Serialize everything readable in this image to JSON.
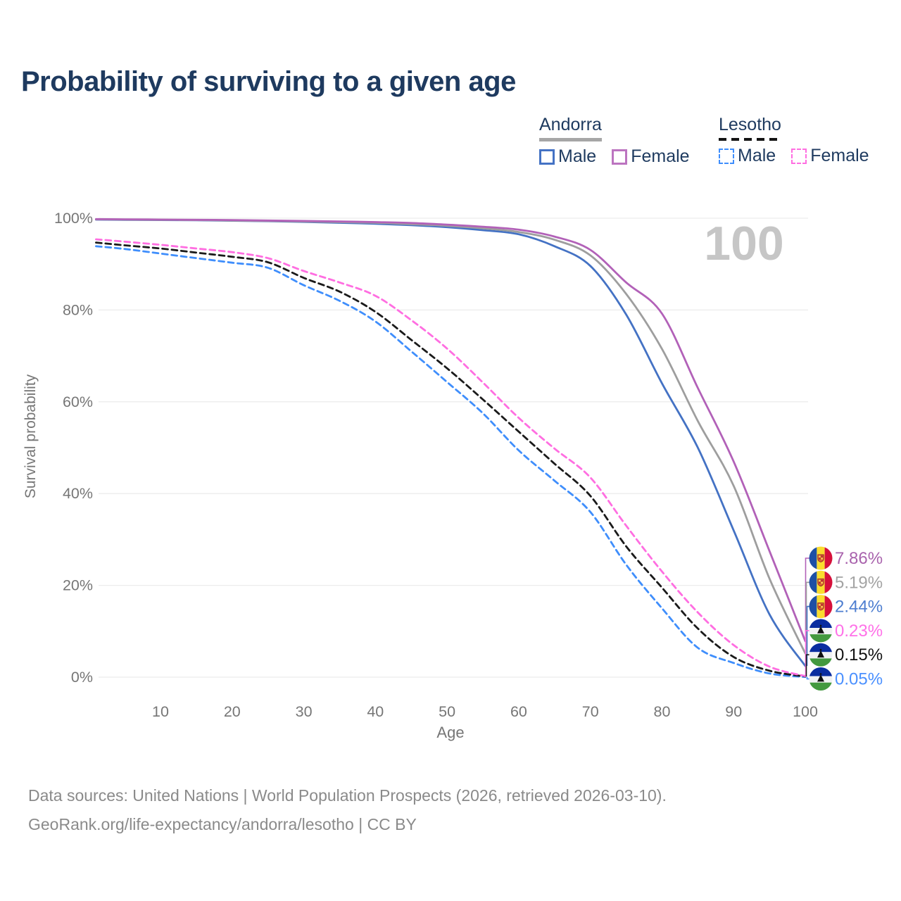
{
  "title": "Probability of surviving to a given age",
  "legend": {
    "groups": [
      {
        "name": "Andorra",
        "line_style": "solid",
        "underline_color": "#a6a6a6",
        "items": [
          {
            "label": "Male",
            "swatch_color": "#4472c4",
            "dashed": false
          },
          {
            "label": "Female",
            "swatch_color": "#bc74c0",
            "dashed": false
          }
        ]
      },
      {
        "name": "Lesotho",
        "line_style": "dashed",
        "underline_color": "#141414",
        "items": [
          {
            "label": "Male",
            "swatch_color": "#3f8efc",
            "dashed": true
          },
          {
            "label": "Female",
            "swatch_color": "#ff6ee1",
            "dashed": true
          }
        ]
      }
    ]
  },
  "axes": {
    "x_label": "Age",
    "y_label": "Survival probability",
    "x_ticks": [
      10,
      20,
      30,
      40,
      50,
      60,
      70,
      80,
      90,
      100
    ],
    "y_ticks": [
      0,
      20,
      40,
      60,
      80,
      100
    ],
    "y_tick_suffix": "%"
  },
  "annotation": "100",
  "colors": {
    "title": "#1e3a5f",
    "grid": "#ececec",
    "axis_text": "#767676",
    "annotation": "#c6c6c6",
    "footer_text": "#8a8a8a"
  },
  "chart_data": {
    "type": "line",
    "title": "Probability of surviving to a given age",
    "xlabel": "Age",
    "ylabel": "Survival probability",
    "xlim": [
      1,
      100
    ],
    "ylim": [
      0,
      100
    ],
    "grid": "horizontal",
    "legend_position": "top-right",
    "annotation": "100",
    "x": [
      1,
      5,
      10,
      15,
      20,
      25,
      30,
      35,
      40,
      45,
      50,
      55,
      60,
      65,
      70,
      75,
      80,
      85,
      90,
      95,
      100
    ],
    "series": [
      {
        "id": "andorra-male",
        "name": "Andorra Male",
        "country": "Andorra",
        "sex": "Male",
        "color": "#4472c4",
        "label_color": "#4e7ed0",
        "dashed": false,
        "flag": "andorra",
        "end_label": "2.44%",
        "end_value": 2.44,
        "values": [
          99.7,
          99.65,
          99.6,
          99.55,
          99.45,
          99.35,
          99.2,
          99.0,
          98.8,
          98.5,
          98.05,
          97.4,
          96.5,
          93.9,
          89.6,
          79.0,
          64.0,
          50.0,
          32.0,
          13.7,
          2.44
        ]
      },
      {
        "id": "andorra-total",
        "name": "Andorra",
        "country": "Andorra",
        "sex": "Both",
        "color": "#9e9e9e",
        "label_color": "#a3a3a3",
        "dashed": false,
        "flag": "andorra",
        "end_label": "5.19%",
        "end_value": 5.19,
        "values": [
          99.75,
          99.7,
          99.65,
          99.6,
          99.5,
          99.4,
          99.3,
          99.15,
          99.0,
          98.7,
          98.35,
          97.8,
          97.0,
          95.3,
          91.9,
          83.5,
          71.5,
          55.8,
          41.7,
          21.5,
          5.19
        ]
      },
      {
        "id": "andorra-female",
        "name": "Andorra Female",
        "country": "Andorra",
        "sex": "Female",
        "color": "#b261b8",
        "label_color": "#a963ad",
        "dashed": false,
        "flag": "andorra",
        "end_label": "7.86%",
        "end_value": 7.86,
        "values": [
          99.8,
          99.75,
          99.7,
          99.65,
          99.6,
          99.5,
          99.4,
          99.3,
          99.15,
          98.95,
          98.6,
          98.15,
          97.5,
          96.0,
          93.1,
          86.0,
          79.2,
          63.0,
          47.0,
          27.5,
          7.86
        ]
      },
      {
        "id": "lesotho-male",
        "name": "Lesotho Male",
        "country": "Lesotho",
        "sex": "Male",
        "color": "#3f8efc",
        "label_color": "#4a90ff",
        "dashed": true,
        "flag": "lesotho",
        "end_label": "0.05%",
        "end_value": 0.05,
        "values": [
          93.9,
          93.3,
          92.3,
          91.3,
          90.3,
          89.2,
          85.4,
          82.0,
          77.5,
          71.0,
          64.3,
          57.5,
          49.4,
          42.8,
          36.0,
          24.5,
          15.0,
          6.4,
          3.1,
          0.8,
          0.05
        ]
      },
      {
        "id": "lesotho-total",
        "name": "Lesotho",
        "country": "Lesotho",
        "sex": "Both",
        "color": "#1a1a1a",
        "label_color": "#111111",
        "dashed": true,
        "flag": "lesotho",
        "end_label": "0.15%",
        "end_value": 0.15,
        "values": [
          94.7,
          94.1,
          93.4,
          92.5,
          91.6,
          90.4,
          87.0,
          84.0,
          79.6,
          73.5,
          67.3,
          60.5,
          53.5,
          46.5,
          39.5,
          28.5,
          19.5,
          10.6,
          4.4,
          1.4,
          0.15
        ]
      },
      {
        "id": "lesotho-female",
        "name": "Lesotho Female",
        "country": "Lesotho",
        "sex": "Female",
        "color": "#ff6ee1",
        "label_color": "#ff70e8",
        "dashed": true,
        "flag": "lesotho",
        "end_label": "0.23%",
        "end_value": 0.23,
        "values": [
          95.4,
          94.9,
          94.2,
          93.4,
          92.6,
          91.3,
          88.5,
          86.0,
          83.1,
          77.8,
          71.6,
          64.2,
          56.5,
          49.8,
          43.5,
          33.0,
          23.0,
          14.1,
          7.0,
          2.3,
          0.23
        ]
      }
    ]
  },
  "footer": {
    "line1": "Data sources: United Nations | World Population Prospects (2026, retrieved 2026-03-10).",
    "line2": "GeoRank.org/life-expectancy/andorra/lesotho | CC BY"
  }
}
